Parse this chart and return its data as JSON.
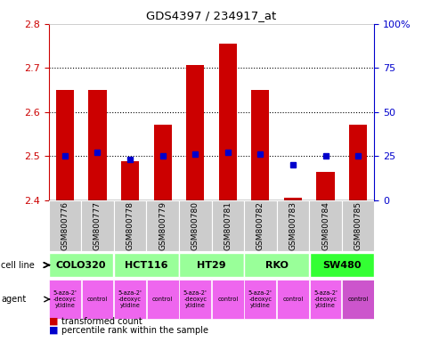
{
  "title": "GDS4397 / 234917_at",
  "samples": [
    "GSM800776",
    "GSM800777",
    "GSM800778",
    "GSM800779",
    "GSM800780",
    "GSM800781",
    "GSM800782",
    "GSM800783",
    "GSM800784",
    "GSM800785"
  ],
  "transformed_counts": [
    2.651,
    2.651,
    2.488,
    2.572,
    2.706,
    2.755,
    2.651,
    2.405,
    2.464,
    2.572
  ],
  "percentile_ranks": [
    25,
    27,
    23,
    25,
    26,
    27,
    26,
    20,
    25,
    25
  ],
  "ylim_left": [
    2.4,
    2.8
  ],
  "ylim_right": [
    0,
    100
  ],
  "yticks_left": [
    2.4,
    2.5,
    2.6,
    2.7,
    2.8
  ],
  "yticks_right": [
    0,
    25,
    50,
    75,
    100
  ],
  "bar_color": "#cc0000",
  "dot_color": "#0000cc",
  "bar_bottom": 2.4,
  "cell_lines": [
    {
      "name": "COLO320",
      "cols": [
        0,
        1
      ],
      "color": "#99ff99"
    },
    {
      "name": "HCT116",
      "cols": [
        2,
        3
      ],
      "color": "#99ff99"
    },
    {
      "name": "HT29",
      "cols": [
        4,
        5
      ],
      "color": "#99ff99"
    },
    {
      "name": "RKO",
      "cols": [
        6,
        7
      ],
      "color": "#99ff99"
    },
    {
      "name": "SW480",
      "cols": [
        8,
        9
      ],
      "color": "#33ff33"
    }
  ],
  "agents": [
    {
      "name": "5-aza-2'\n-deoxyc\nytidine",
      "col": 0,
      "color": "#ee66ee"
    },
    {
      "name": "control",
      "col": 1,
      "color": "#ee66ee"
    },
    {
      "name": "5-aza-2'\n-deoxyc\nytidine",
      "col": 2,
      "color": "#ee66ee"
    },
    {
      "name": "control",
      "col": 3,
      "color": "#ee66ee"
    },
    {
      "name": "5-aza-2'\n-deoxyc\nytidine",
      "col": 4,
      "color": "#ee66ee"
    },
    {
      "name": "control",
      "col": 5,
      "color": "#ee66ee"
    },
    {
      "name": "5-aza-2'\n-deoxyc\nytidine",
      "col": 6,
      "color": "#ee66ee"
    },
    {
      "name": "control",
      "col": 7,
      "color": "#ee66ee"
    },
    {
      "name": "5-aza-2'\n-deoxyc\nytidine",
      "col": 8,
      "color": "#ee66ee"
    },
    {
      "name": "control",
      "col": 9,
      "color": "#cc55cc"
    }
  ],
  "sample_bg_color": "#cccccc",
  "right_axis_color": "#0000cc",
  "left_axis_color": "#cc0000",
  "dotted_yticks": [
    2.5,
    2.6,
    2.7
  ]
}
